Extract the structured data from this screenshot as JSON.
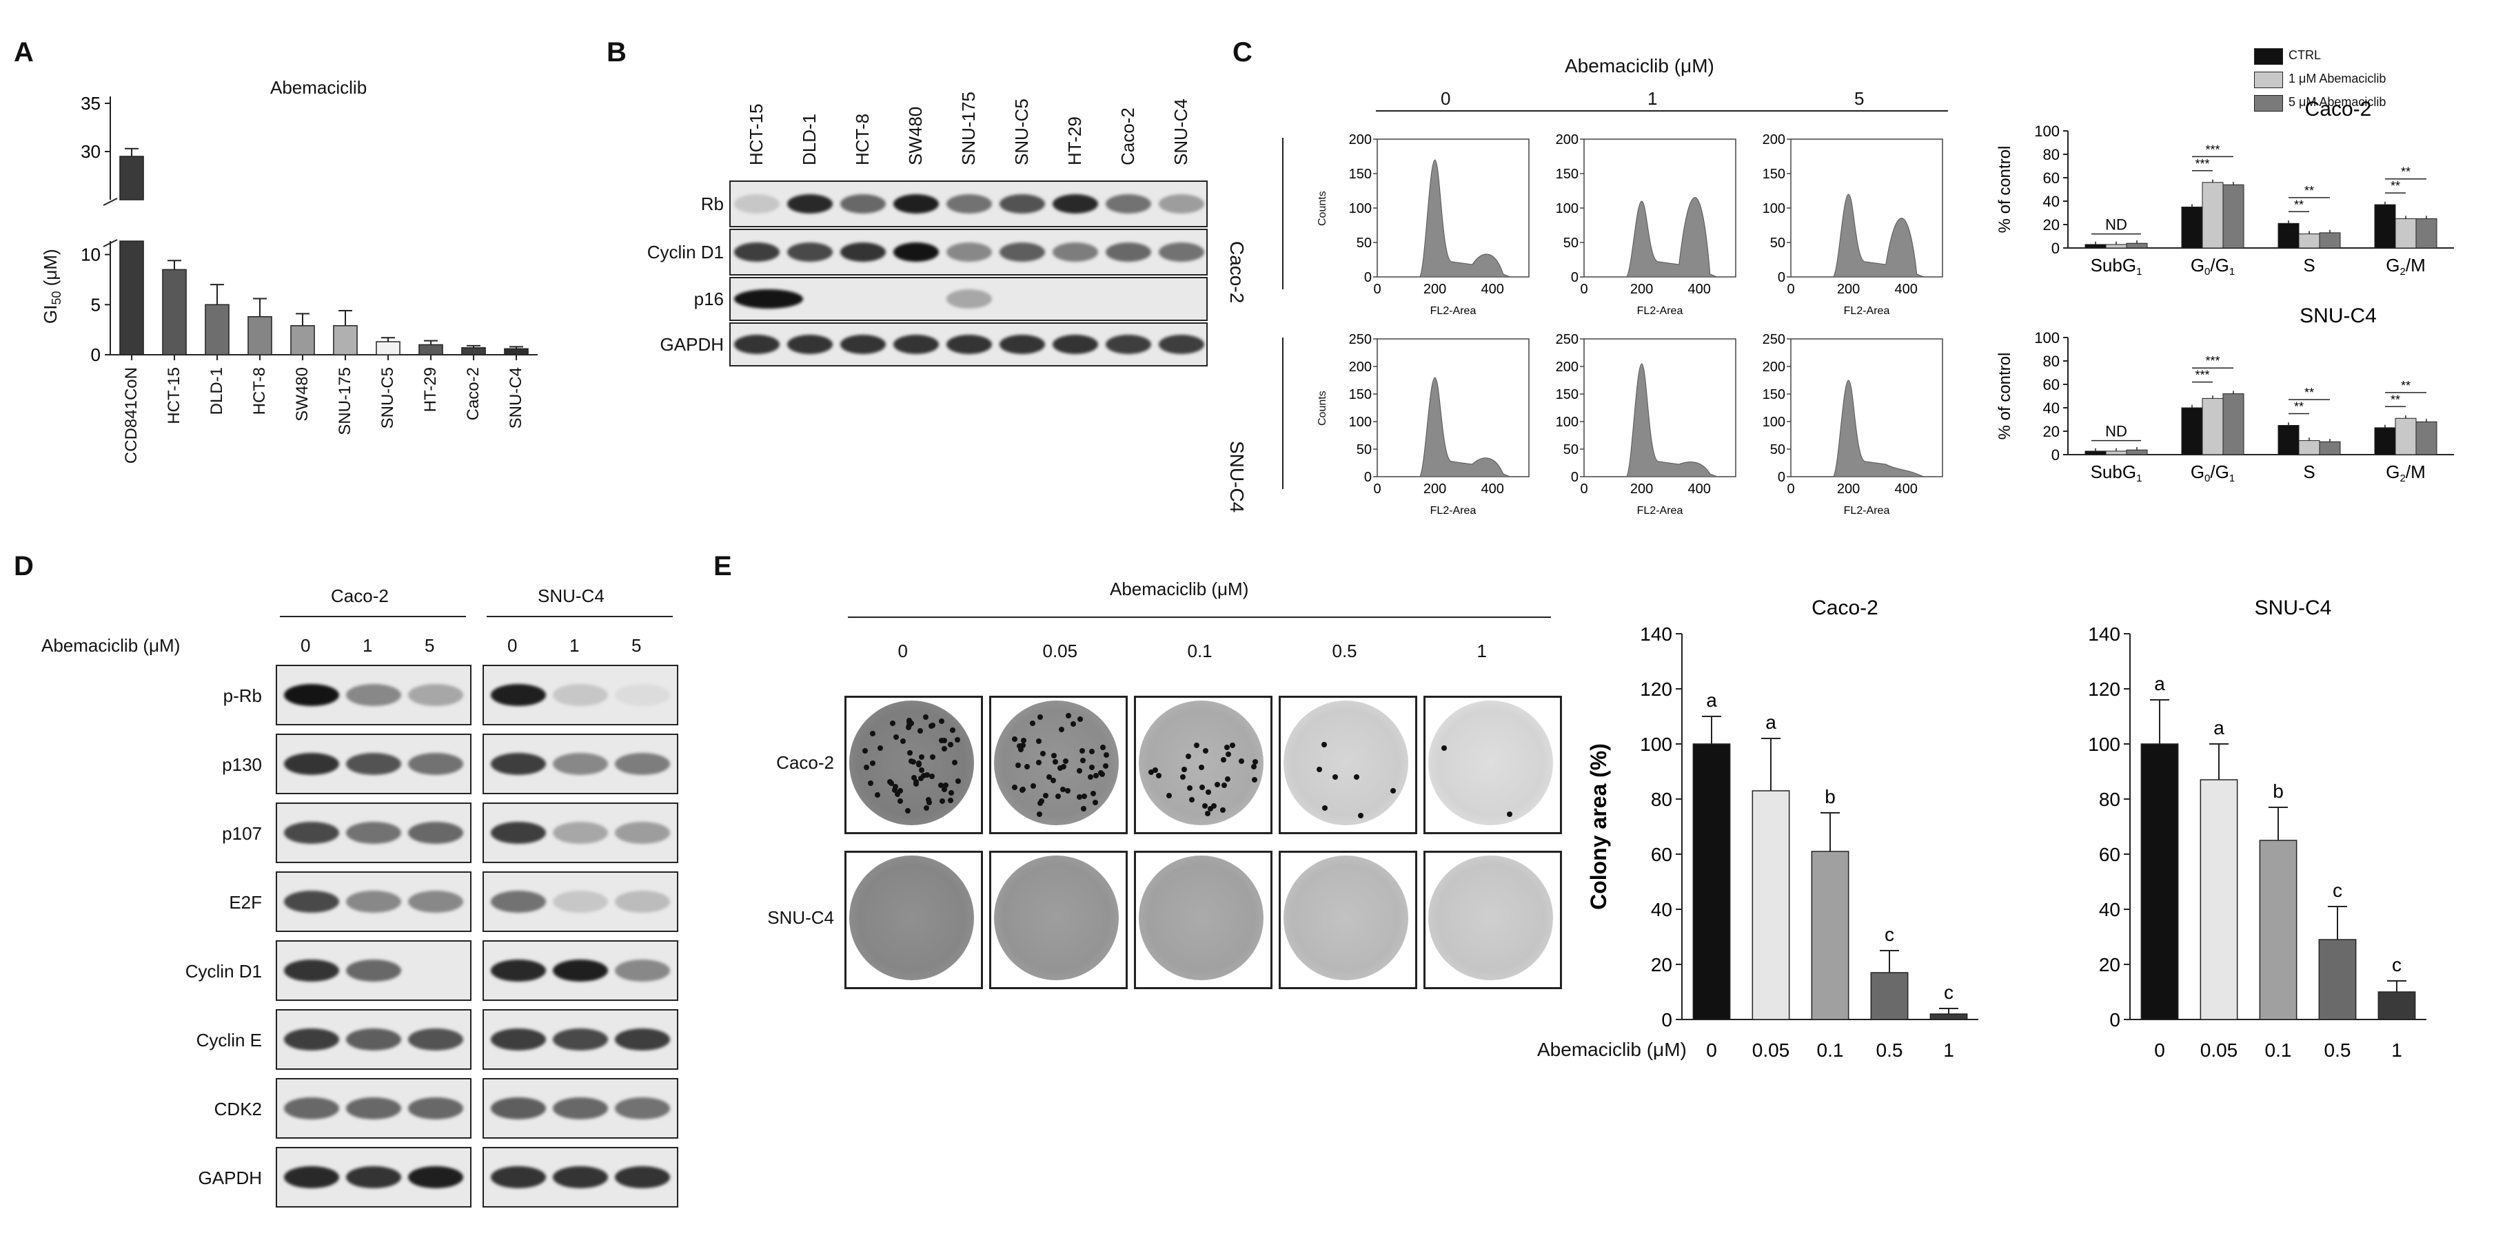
{
  "panels": {
    "A": {
      "label": "A",
      "title": "Abemaciclib",
      "ylabel_main": "GI",
      "ylabel_sub": "50",
      "ylabel_unit": " (μM)",
      "y_ticks_top": [
        "35",
        "30"
      ],
      "y_ticks_bottom": [
        "10",
        "5",
        "0"
      ]
    },
    "B": {
      "label": "B",
      "lanes": [
        "HCT-15",
        "DLD-1",
        "HCT-8",
        "SW480",
        "SNU-175",
        "SNU-C5",
        "HT-29",
        "Caco-2",
        "SNU-C4"
      ],
      "rows": [
        "Rb",
        "Cyclin D1",
        "p16",
        "GAPDH"
      ]
    },
    "C": {
      "label": "C",
      "header": "Abemaciclib (μM)",
      "doses": [
        "0",
        "1",
        "5"
      ],
      "cell_lines": [
        "Caco-2",
        "SNU-C4"
      ],
      "y_axis_label": "Counts",
      "x_axis_label": "FL2-Area",
      "hist_x_ticks": [
        "0",
        "200",
        "400"
      ],
      "hist_y_ticks_caco2": [
        "200",
        "150",
        "100",
        "50",
        "0"
      ],
      "hist_y_ticks_snuc4": [
        "250",
        "200",
        "150",
        "100",
        "50",
        "0"
      ],
      "legend": [
        "CTRL",
        "1 μM Abemaciclib",
        "5 μM Abemaciclib"
      ],
      "bar_ylabel": "% of control",
      "bar_y_ticks": [
        "100",
        "80",
        "60",
        "40",
        "20",
        "0"
      ],
      "phases": [
        "SubG1",
        "G0/G1",
        "S",
        "G2/M"
      ],
      "nd_label": "ND",
      "sig_labels": [
        "***",
        "***",
        "**",
        "**",
        "**",
        "**"
      ]
    },
    "D": {
      "label": "D",
      "groups": [
        "Caco-2",
        "SNU-C4"
      ],
      "dose_label": "Abemaciclib (μM)",
      "doses": [
        "0",
        "1",
        "5"
      ],
      "rows": [
        "p-Rb",
        "p130",
        "p107",
        "E2F",
        "Cyclin D1",
        "Cyclin E",
        "CDK2",
        "GAPDH"
      ]
    },
    "E": {
      "label": "E",
      "header": "Abemaciclib (μM)",
      "doses": [
        "0",
        "0.05",
        "0.1",
        "0.5",
        "1"
      ],
      "rows": [
        "Caco-2",
        "SNU-C4"
      ],
      "bar_ylabel": "Colony area (%)",
      "bar_y_ticks": [
        "140",
        "120",
        "100",
        "80",
        "60",
        "40",
        "20",
        "0"
      ],
      "x_row_label": "Abemaciclib (μM)",
      "chart_titles": [
        "Caco-2",
        "SNU-C4"
      ]
    }
  },
  "chart_data": [
    {
      "type": "bar",
      "panel": "A",
      "title": "Abemaciclib",
      "categories": [
        "CCD841CoN",
        "HCT-15",
        "DLD-1",
        "HCT-8",
        "SW480",
        "SNU-175",
        "SNU-C5",
        "HT-29",
        "Caco-2",
        "SNU-C4"
      ],
      "values": [
        29.5,
        8.5,
        5.0,
        3.8,
        2.9,
        2.9,
        1.3,
        1.0,
        0.7,
        0.6
      ],
      "errors": [
        0.8,
        0.9,
        2.0,
        1.8,
        1.2,
        1.5,
        0.4,
        0.4,
        0.2,
        0.2
      ],
      "ylabel": "GI50 (μM)",
      "axis_break": [
        11,
        25
      ],
      "ylim": [
        0,
        35
      ],
      "colors": [
        "#3a3a3a",
        "#585858",
        "#6e6e6e",
        "#858585",
        "#9a9a9a",
        "#b0b0b0",
        "#f2f2f2",
        "#5a5a5a",
        "#3f3f3f",
        "#2e2e2e"
      ]
    },
    {
      "type": "bar",
      "panel": "C",
      "title": "Caco-2",
      "categories": [
        "SubG1",
        "G0/G1",
        "S",
        "G2/M"
      ],
      "series": [
        {
          "name": "CTRL",
          "values": [
            3,
            35,
            21,
            37
          ],
          "color": "#111111"
        },
        {
          "name": "1 μM Abemaciclib",
          "values": [
            3,
            56,
            12,
            25
          ],
          "color": "#c8c8c8"
        },
        {
          "name": "5 μM Abemaciclib",
          "values": [
            4,
            54,
            13,
            25
          ],
          "color": "#7a7a7a"
        }
      ],
      "ylabel": "% of control",
      "ylim": [
        0,
        100
      ]
    },
    {
      "type": "bar",
      "panel": "C",
      "title": "SNU-C4",
      "categories": [
        "SubG1",
        "G0/G1",
        "S",
        "G2/M"
      ],
      "series": [
        {
          "name": "CTRL",
          "values": [
            3,
            40,
            25,
            23
          ],
          "color": "#111111"
        },
        {
          "name": "1 μM Abemaciclib",
          "values": [
            3,
            48,
            12,
            31
          ],
          "color": "#c8c8c8"
        },
        {
          "name": "5 μM Abemaciclib",
          "values": [
            4,
            52,
            11,
            28
          ],
          "color": "#7a7a7a"
        }
      ],
      "ylabel": "% of control",
      "ylim": [
        0,
        100
      ]
    },
    {
      "type": "bar",
      "panel": "E",
      "title": "Caco-2",
      "categories": [
        "0",
        "0.05",
        "0.1",
        "0.5",
        "1"
      ],
      "values": [
        100,
        83,
        61,
        17,
        2
      ],
      "errors": [
        10,
        19,
        14,
        8,
        2
      ],
      "letters": [
        "a",
        "a",
        "b",
        "c",
        "c"
      ],
      "ylabel": "Colony area (%)",
      "xlabel": "Abemaciclib (μM)",
      "ylim": [
        0,
        140
      ],
      "colors": [
        "#111111",
        "#e6e6e6",
        "#a0a0a0",
        "#6a6a6a",
        "#3a3a3a"
      ]
    },
    {
      "type": "bar",
      "panel": "E",
      "title": "SNU-C4",
      "categories": [
        "0",
        "0.05",
        "0.1",
        "0.5",
        "1"
      ],
      "values": [
        100,
        87,
        65,
        29,
        10
      ],
      "errors": [
        16,
        13,
        12,
        12,
        4
      ],
      "letters": [
        "a",
        "a",
        "b",
        "c",
        "c"
      ],
      "ylabel": "Colony area (%)",
      "ylim": [
        0,
        140
      ],
      "colors": [
        "#111111",
        "#e6e6e6",
        "#a0a0a0",
        "#6a6a6a",
        "#3a3a3a"
      ]
    }
  ]
}
